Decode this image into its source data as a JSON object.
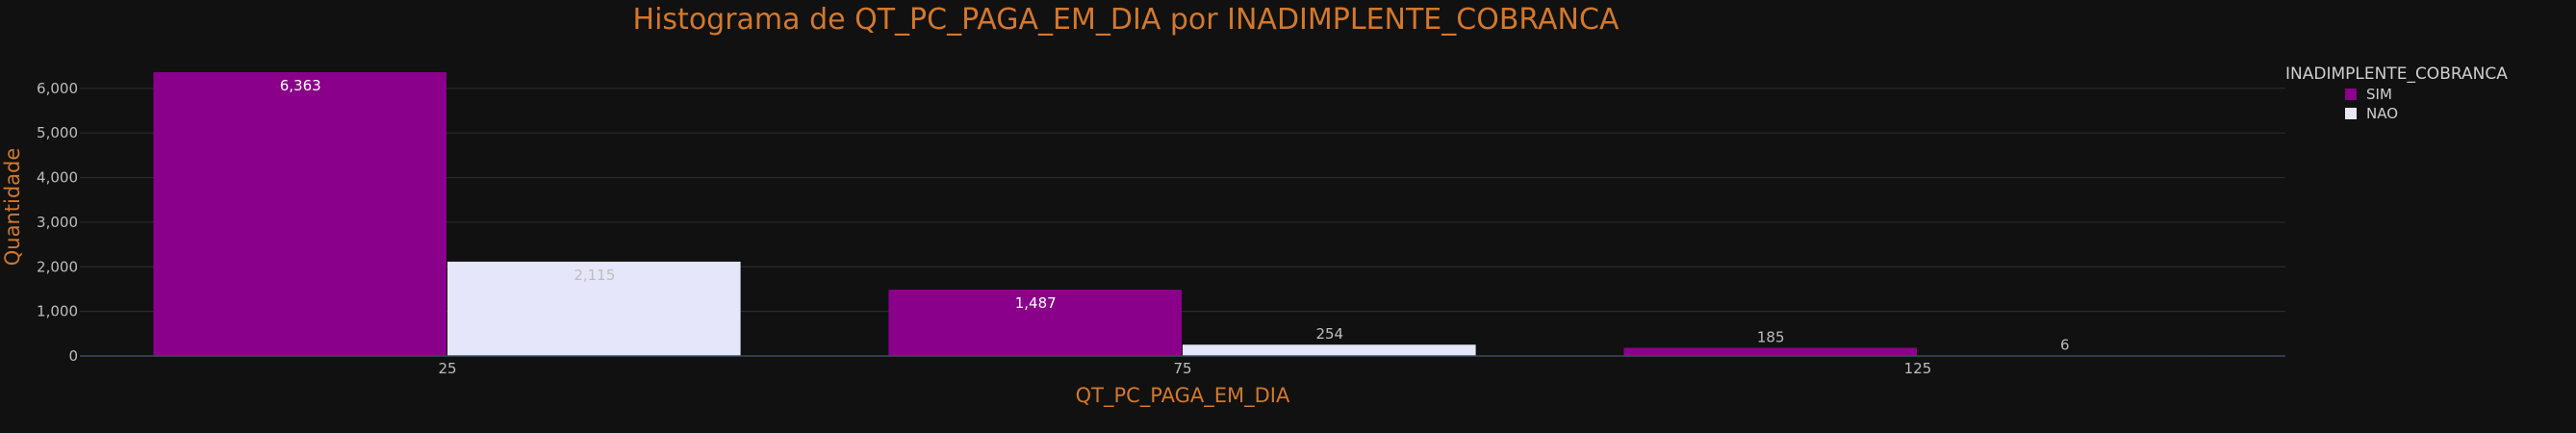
{
  "chart_data": {
    "type": "bar",
    "title": "Histograma de QT_PC_PAGA_EM_DIA por INADIMPLENTE_COBRANCA",
    "xlabel": "QT_PC_PAGA_EM_DIA",
    "ylabel": "Quantidade",
    "categories": [
      "25",
      "75",
      "125"
    ],
    "x": [
      25,
      75,
      125
    ],
    "ylim": [
      0,
      6363
    ],
    "yticks": [
      0,
      1000,
      2000,
      3000,
      4000,
      5000,
      6000
    ],
    "ytick_labels": [
      "0",
      "1,000",
      "2,000",
      "3,000",
      "4,000",
      "5,000",
      "6,000"
    ],
    "grid": true,
    "legend_title": "INADIMPLENTE_COBRANCA",
    "legend_position": "top-right",
    "series": [
      {
        "name": "SIM",
        "color": "#8b008b",
        "label_color": "#ffffff",
        "values": [
          6363,
          1487,
          185
        ],
        "labels": [
          "6,363",
          "1,487",
          "185"
        ]
      },
      {
        "name": "NAO",
        "color": "#e6e6fa",
        "label_color": "#bdbdbd",
        "values": [
          2115,
          254,
          6
        ],
        "labels": [
          "2,115",
          "254",
          "6"
        ]
      }
    ]
  }
}
